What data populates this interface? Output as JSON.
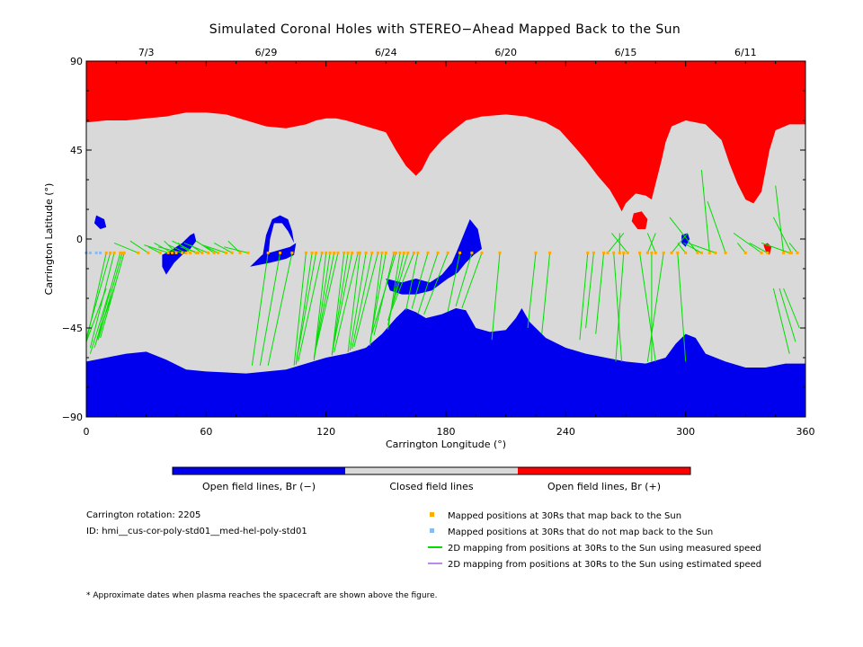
{
  "chart_data": {
    "type": "heatmap",
    "title": "Simulated Coronal Holes with STEREO−Ahead Mapped Back to the Sun",
    "xlabel": "Carrington Longitude (°)",
    "ylabel": "Carrington Latitude (°)",
    "xlim": [
      0,
      360
    ],
    "ylim": [
      -90,
      90
    ],
    "x_ticks": [
      0,
      60,
      120,
      180,
      240,
      300,
      360
    ],
    "y_ticks": [
      90,
      45,
      0,
      -45,
      -90
    ],
    "top_axis_dates": [
      {
        "label": "7/3",
        "lon": 30
      },
      {
        "label": "6/29",
        "lon": 90
      },
      {
        "label": "6/24",
        "lon": 150
      },
      {
        "label": "6/20",
        "lon": 210
      },
      {
        "label": "6/15",
        "lon": 270
      },
      {
        "label": "6/11",
        "lon": 330
      }
    ],
    "colors": {
      "open_negative": "#0000ee",
      "closed": "#d9d9d9",
      "open_positive": "#ff0000",
      "mapped": "#ffaa00",
      "not_mapped": "#88bbee",
      "measured_speed": "#00dd00",
      "estimated_speed": "#bb88ee"
    },
    "north_boundary": [
      [
        0,
        59
      ],
      [
        10,
        60
      ],
      [
        20,
        60
      ],
      [
        30,
        61
      ],
      [
        40,
        62
      ],
      [
        50,
        64
      ],
      [
        60,
        64
      ],
      [
        70,
        63
      ],
      [
        80,
        60
      ],
      [
        90,
        57
      ],
      [
        100,
        56
      ],
      [
        110,
        58
      ],
      [
        115,
        60
      ],
      [
        120,
        61
      ],
      [
        125,
        61
      ],
      [
        130,
        60
      ],
      [
        140,
        57
      ],
      [
        150,
        54
      ],
      [
        155,
        45
      ],
      [
        160,
        37
      ],
      [
        165,
        32
      ],
      [
        168,
        35
      ],
      [
        172,
        43
      ],
      [
        178,
        50
      ],
      [
        185,
        56
      ],
      [
        190,
        60
      ],
      [
        198,
        62
      ],
      [
        210,
        63
      ],
      [
        220,
        62
      ],
      [
        230,
        59
      ],
      [
        237,
        55
      ],
      [
        245,
        46
      ],
      [
        250,
        40
      ],
      [
        256,
        32
      ],
      [
        262,
        25
      ],
      [
        266,
        18
      ],
      [
        268,
        14
      ],
      [
        270,
        18
      ],
      [
        275,
        23
      ],
      [
        280,
        22
      ],
      [
        283,
        20
      ],
      [
        285,
        28
      ],
      [
        288,
        40
      ],
      [
        290,
        49
      ],
      [
        293,
        57
      ],
      [
        300,
        60
      ],
      [
        310,
        58
      ],
      [
        318,
        50
      ],
      [
        322,
        38
      ],
      [
        326,
        28
      ],
      [
        330,
        20
      ],
      [
        334,
        18
      ],
      [
        338,
        24
      ],
      [
        342,
        45
      ],
      [
        345,
        55
      ],
      [
        352,
        58
      ],
      [
        360,
        58
      ]
    ],
    "south_boundary": [
      [
        0,
        -62
      ],
      [
        10,
        -60
      ],
      [
        20,
        -58
      ],
      [
        30,
        -57
      ],
      [
        40,
        -61
      ],
      [
        50,
        -66
      ],
      [
        60,
        -67
      ],
      [
        80,
        -68
      ],
      [
        100,
        -66
      ],
      [
        110,
        -63
      ],
      [
        120,
        -60
      ],
      [
        130,
        -58
      ],
      [
        140,
        -55
      ],
      [
        148,
        -48
      ],
      [
        155,
        -40
      ],
      [
        160,
        -35
      ],
      [
        165,
        -37
      ],
      [
        170,
        -40
      ],
      [
        178,
        -38
      ],
      [
        185,
        -35
      ],
      [
        190,
        -36
      ],
      [
        195,
        -45
      ],
      [
        202,
        -47
      ],
      [
        210,
        -46
      ],
      [
        215,
        -40
      ],
      [
        218,
        -35
      ],
      [
        222,
        -42
      ],
      [
        230,
        -50
      ],
      [
        240,
        -55
      ],
      [
        250,
        -58
      ],
      [
        260,
        -60
      ],
      [
        270,
        -62
      ],
      [
        280,
        -63
      ],
      [
        290,
        -60
      ],
      [
        295,
        -53
      ],
      [
        300,
        -48
      ],
      [
        305,
        -50
      ],
      [
        310,
        -58
      ],
      [
        320,
        -62
      ],
      [
        330,
        -65
      ],
      [
        340,
        -65
      ],
      [
        350,
        -63
      ],
      [
        360,
        -63
      ]
    ],
    "mapped_longitudes": [
      10,
      12,
      14,
      17,
      18,
      19,
      26,
      31,
      37,
      41,
      43,
      45,
      48,
      50,
      52,
      55,
      56,
      58,
      61,
      64,
      66,
      70,
      73,
      77,
      81,
      91,
      97,
      103,
      110,
      113,
      115,
      118,
      120,
      122,
      124,
      126,
      129,
      131,
      133,
      136,
      137,
      140,
      143,
      146,
      148,
      150,
      154,
      155,
      157,
      159,
      161,
      164,
      166,
      171,
      176,
      181,
      187,
      193,
      198,
      207,
      225,
      232,
      251,
      254,
      259,
      261,
      264,
      267,
      269,
      271,
      277,
      281,
      283,
      285,
      289,
      293,
      296,
      300,
      306,
      308,
      312,
      315,
      320,
      330,
      338,
      341,
      349,
      352,
      353,
      356
    ],
    "not_mapped_longitudes": [
      0,
      2,
      5,
      7
    ],
    "colorbar_labels": [
      "Open field lines, Br (−)",
      "Closed field lines",
      "Open field lines, Br (+)"
    ],
    "legend": [
      {
        "label": "Mapped positions at 30Rs that map back to the Sun",
        "kind": "square",
        "color": "#ffaa00"
      },
      {
        "label": "Mapped positions at 30Rs that do not map back to the Sun",
        "kind": "square",
        "color": "#88bbee"
      },
      {
        "label": "2D mapping from positions at 30Rs to the Sun using measured speed",
        "kind": "line",
        "color": "#00dd00"
      },
      {
        "label": "2D mapping from positions at 30Rs to the Sun using estimated speed",
        "kind": "line",
        "color": "#bb88ee"
      }
    ]
  },
  "info": {
    "rotation": "Carrington rotation: 2205",
    "id": "ID: hmi__cus-cor-poly-std01__med-hel-poly-std01",
    "footnote": "* Approximate dates when plasma reaches the spacecraft are shown above the figure."
  }
}
